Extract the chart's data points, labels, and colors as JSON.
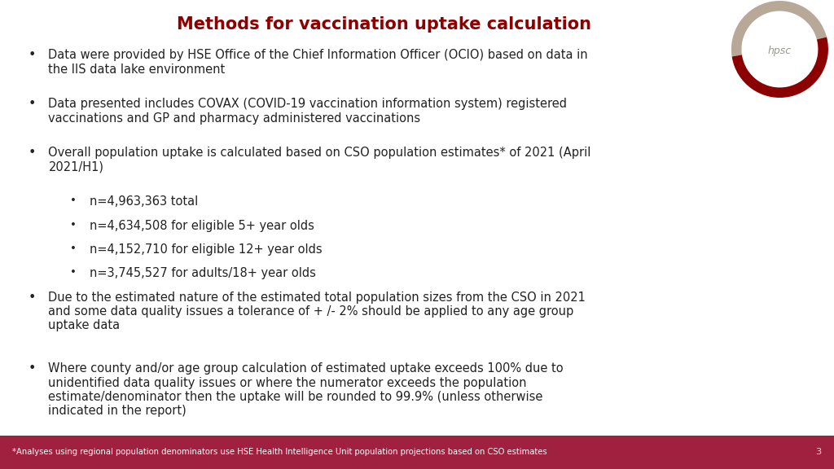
{
  "title": "Methods for vaccination uptake calculation",
  "title_color": "#8B0000",
  "background_color": "#FFFFFF",
  "footer_bg_color": "#A0213F",
  "footer_text": "*Analyses using regional population denominators use HSE Health Intelligence Unit population projections based on CSO estimates",
  "footer_page": "3",
  "footer_text_color": "#FFFFFF",
  "bullet_color": "#222222",
  "font_size_title": 15,
  "font_size_body": 10.5,
  "font_size_footer": 7.2,
  "logo_text_color": "#999990",
  "logo_arc1_color": "#b8a898",
  "logo_arc2_color": "#8B0000",
  "items": [
    {
      "type": "bullet",
      "text": "Data were provided by HSE Office of the Chief Information Officer (OCIO) based on data in\nthe IIS data lake environment"
    },
    {
      "type": "bullet",
      "text": "Data presented includes COVAX (COVID-19 vaccination information system) registered\nvaccinations and GP and pharmacy administered vaccinations"
    },
    {
      "type": "bullet",
      "text": "Overall population uptake is calculated based on CSO population estimates* of 2021 (April\n2021/H1)"
    },
    {
      "type": "subbullet",
      "text": "n=4,963,363 total"
    },
    {
      "type": "subbullet",
      "text": "n=4,634,508 for eligible 5+ year olds"
    },
    {
      "type": "subbullet",
      "text": "n=4,152,710 for eligible 12+ year olds"
    },
    {
      "type": "subbullet",
      "text": "n=3,745,527 for adults/18+ year olds"
    },
    {
      "type": "bullet",
      "text": "Due to the estimated nature of the estimated total population sizes from the CSO in 2021\nand some data quality issues a tolerance of + /- 2% should be applied to any age group\nuptake data"
    },
    {
      "type": "bullet",
      "text": "Where county and/or age group calculation of estimated uptake exceeds 100% due to\nunidentified data quality issues or where the numerator exceeds the population\nestimate/denominator then the uptake will be rounded to 99.9% (unless otherwise\nindicated in the report)"
    }
  ]
}
